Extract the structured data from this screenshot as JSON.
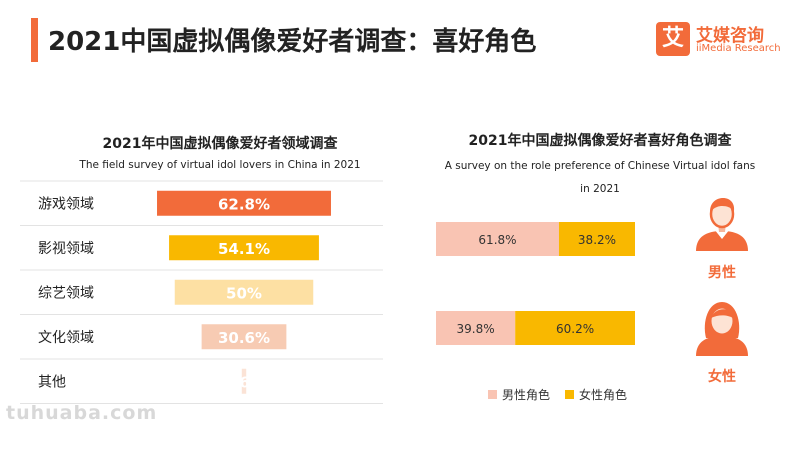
{
  "header": {
    "title": "2021中国虚拟偶像爱好者调查：喜好角色",
    "accent_color": "#f26b3a",
    "logo": {
      "icon_char": "艾",
      "name": "艾媒咨询",
      "sub": "iiMedia Research"
    }
  },
  "watermark": "tuhuaba.com",
  "chart_data": [
    {
      "type": "bar",
      "orientation": "horizontal",
      "title": "2021年中国虚拟偶像爱好者领域调查",
      "subtitle": "The field survey of virtual idol lovers in China in 2021",
      "categories": [
        "游戏领域",
        "影视领域",
        "综艺领域",
        "文化领域",
        "其他"
      ],
      "values": [
        62.8,
        54.1,
        50,
        30.6,
        1.6
      ],
      "labels": [
        "62.8%",
        "54.1%",
        "50%",
        "30.6%",
        "1.6%"
      ],
      "colors": [
        "#f26b3a",
        "#f9b800",
        "#fde0a3",
        "#f7cbb3",
        "#fbe3d6"
      ],
      "xlim": [
        0,
        100
      ],
      "grid": true
    },
    {
      "type": "bar",
      "orientation": "horizontal",
      "stacked": true,
      "title": "2021年中国虚拟偶像爱好者喜好角色调查",
      "subtitle": "A survey on the role preference of Chinese Virtual idol fans in 2021",
      "categories": [
        "男性",
        "女性"
      ],
      "series": [
        {
          "name": "男性角色",
          "values": [
            61.8,
            39.8
          ],
          "labels": [
            "61.8%",
            "39.8%"
          ],
          "color": "#f9c4b3"
        },
        {
          "name": "女性角色",
          "values": [
            38.2,
            60.2
          ],
          "labels": [
            "38.2%",
            "60.2%"
          ],
          "color": "#f9b800"
        }
      ],
      "xlim": [
        0,
        100
      ],
      "legend": "bottom"
    }
  ]
}
